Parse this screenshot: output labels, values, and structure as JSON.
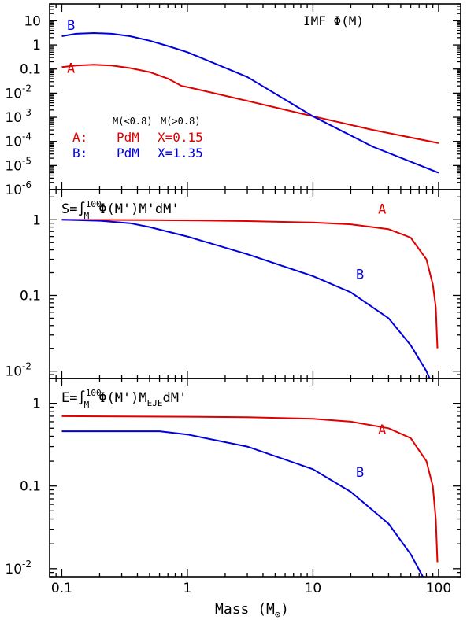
{
  "chart_data": [
    {
      "type": "line",
      "title": "IMF Φ(M)",
      "x_scale": "log",
      "y_scale": "log",
      "xlim": [
        0.08,
        150
      ],
      "ylim": [
        1e-06,
        50
      ],
      "legend_table": {
        "col1_header": "M(<0.8)",
        "col2_header": "M(>0.8)",
        "rows": [
          {
            "label": "A:",
            "col1": "PdM",
            "col2": "X=0.15",
            "color": "#e00000"
          },
          {
            "label": "B:",
            "col1": "PdM",
            "col2": "X=1.35",
            "color": "#0000dd"
          }
        ]
      },
      "series": [
        {
          "name": "A",
          "color": "#e00000",
          "label_at": [
            0.11,
            0.07
          ],
          "x": [
            0.1,
            0.13,
            0.18,
            0.25,
            0.35,
            0.5,
            0.7,
            0.9,
            1,
            3,
            10,
            30,
            100
          ],
          "y": [
            0.12,
            0.14,
            0.15,
            0.14,
            0.11,
            0.075,
            0.04,
            0.02,
            0.018,
            0.0048,
            0.0011,
            0.0003,
            8.5e-05
          ]
        },
        {
          "name": "B",
          "color": "#0000dd",
          "label_at": [
            0.11,
            4.2
          ],
          "x": [
            0.1,
            0.13,
            0.18,
            0.25,
            0.35,
            0.5,
            0.7,
            1,
            3,
            10,
            30,
            100
          ],
          "y": [
            2.3,
            2.9,
            3.1,
            2.9,
            2.3,
            1.5,
            0.9,
            0.5,
            0.047,
            0.0011,
            6e-05,
            5e-06
          ]
        }
      ]
    },
    {
      "type": "line",
      "title": "S=∫_M^100 Φ(M')M'dM'",
      "x_scale": "log",
      "y_scale": "log",
      "xlim": [
        0.08,
        150
      ],
      "ylim": [
        0.008,
        2.5
      ],
      "series": [
        {
          "name": "A",
          "color": "#e00000",
          "label_at": [
            33,
            1.2
          ],
          "x": [
            0.1,
            0.5,
            1,
            3,
            10,
            20,
            40,
            60,
            80,
            90,
            95,
            98
          ],
          "y": [
            1,
            0.99,
            0.98,
            0.96,
            0.92,
            0.87,
            0.75,
            0.58,
            0.3,
            0.14,
            0.07,
            0.02
          ]
        },
        {
          "name": "B",
          "color": "#0000dd",
          "label_at": [
            22,
            0.165
          ],
          "x": [
            0.1,
            0.2,
            0.35,
            0.5,
            1,
            3,
            10,
            20,
            40,
            60,
            80,
            85
          ],
          "y": [
            1,
            0.97,
            0.9,
            0.8,
            0.6,
            0.35,
            0.18,
            0.11,
            0.05,
            0.022,
            0.01,
            0.008
          ]
        }
      ]
    },
    {
      "type": "line",
      "title": "E=∫_M^100 Φ(M')M_EJE dM'",
      "x_scale": "log",
      "y_scale": "log",
      "xlim": [
        0.08,
        150
      ],
      "ylim": [
        0.008,
        2
      ],
      "series": [
        {
          "name": "A",
          "color": "#e00000",
          "label_at": [
            33,
            0.42
          ],
          "x": [
            0.1,
            1,
            3,
            10,
            20,
            40,
            60,
            80,
            90,
            95,
            98
          ],
          "y": [
            0.7,
            0.69,
            0.68,
            0.65,
            0.6,
            0.5,
            0.38,
            0.2,
            0.1,
            0.04,
            0.012
          ]
        },
        {
          "name": "B",
          "color": "#0000dd",
          "label_at": [
            22,
            0.13
          ],
          "x": [
            0.1,
            0.3,
            0.6,
            1,
            3,
            10,
            20,
            40,
            60,
            75
          ],
          "y": [
            0.46,
            0.46,
            0.46,
            0.42,
            0.3,
            0.16,
            0.085,
            0.035,
            0.015,
            0.008
          ]
        }
      ]
    }
  ],
  "x_axis": {
    "label": "Mass (M",
    "label_sub": "⊙",
    "label_close": ")",
    "ticks": [
      {
        "v": 0.1,
        "t": "0.1"
      },
      {
        "v": 1,
        "t": "1"
      },
      {
        "v": 10,
        "t": "10"
      },
      {
        "v": 100,
        "t": "100"
      }
    ]
  },
  "y_ticks": [
    [
      {
        "v": 10,
        "t": "10"
      },
      {
        "v": 1,
        "t": "1"
      },
      {
        "v": 0.1,
        "t": "0.1"
      },
      {
        "v": 0.01,
        "t": "10",
        "e": "-2"
      },
      {
        "v": 0.001,
        "t": "10",
        "e": "-3"
      },
      {
        "v": 0.0001,
        "t": "10",
        "e": "-4"
      },
      {
        "v": 1e-05,
        "t": "10",
        "e": "-5"
      },
      {
        "v": 1e-06,
        "t": "10",
        "e": "-6"
      }
    ],
    [
      {
        "v": 1,
        "t": "1"
      },
      {
        "v": 0.1,
        "t": "0.1"
      },
      {
        "v": 0.01,
        "t": "10",
        "e": "-2"
      }
    ],
    [
      {
        "v": 1,
        "t": "1"
      },
      {
        "v": 0.1,
        "t": "0.1"
      },
      {
        "v": 0.01,
        "t": "10",
        "e": "-2"
      }
    ]
  ],
  "title_parts": [
    {
      "text": "IMF Φ(M)"
    },
    {
      "pre": "S=∫",
      "sub": "M",
      "sup": "100",
      "post": "Φ(M')M'dM'"
    },
    {
      "pre": "E=∫",
      "sub": "M",
      "sup": "100",
      "post": "Φ(M')M",
      "post_sub": "EJE",
      "post_tail": "dM'"
    }
  ]
}
